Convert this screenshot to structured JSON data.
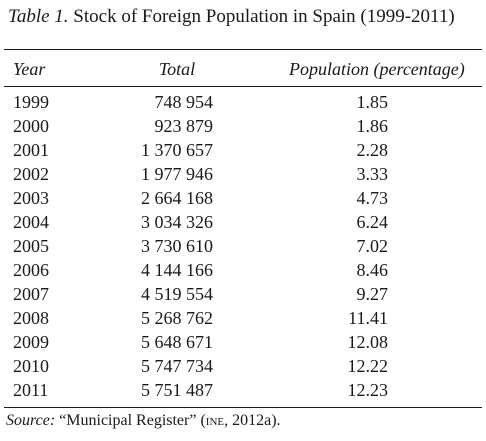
{
  "caption": {
    "label": "Table 1.",
    "title": " Stock of Foreign Population in Spain (1999-2011)"
  },
  "columns": {
    "year": "Year",
    "total": "Total",
    "percentage": "Population (percentage)"
  },
  "rows": [
    {
      "year": "1999",
      "total": "748 954",
      "percentage": "1.85"
    },
    {
      "year": "2000",
      "total": "923 879",
      "percentage": "1.86"
    },
    {
      "year": "2001",
      "total": "1 370 657",
      "percentage": "2.28"
    },
    {
      "year": "2002",
      "total": "1 977 946",
      "percentage": "3.33"
    },
    {
      "year": "2003",
      "total": "2 664 168",
      "percentage": "4.73"
    },
    {
      "year": "2004",
      "total": "3 034 326",
      "percentage": "6.24"
    },
    {
      "year": "2005",
      "total": "3 730 610",
      "percentage": "7.02"
    },
    {
      "year": "2006",
      "total": "4 144 166",
      "percentage": "8.46"
    },
    {
      "year": "2007",
      "total": "4 519 554",
      "percentage": "9.27"
    },
    {
      "year": "2008",
      "total": "5 268 762",
      "percentage": "11.41"
    },
    {
      "year": "2009",
      "total": "5 648 671",
      "percentage": "12.08"
    },
    {
      "year": "2010",
      "total": "5 747 734",
      "percentage": "12.22"
    },
    {
      "year": "2011",
      "total": "5 751 487",
      "percentage": "12.23"
    }
  ],
  "source": {
    "label": "Source:",
    "text_before": " “Municipal Register” (",
    "org": "INE",
    "text_after": ", 2012a)."
  }
}
